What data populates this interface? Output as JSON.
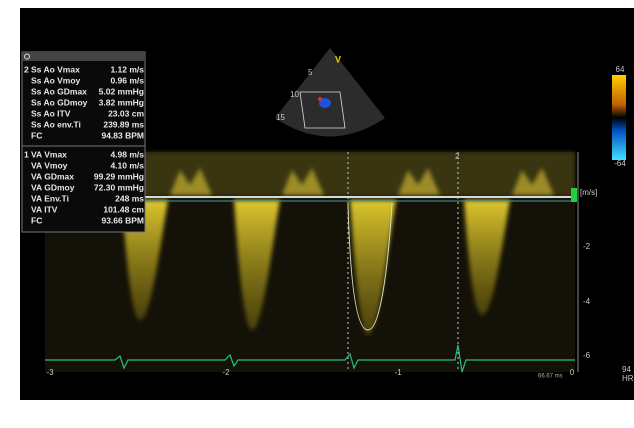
{
  "panel_top": {
    "index": "2",
    "rows": [
      [
        "Ss Ao Vmax",
        "1.12 m/s"
      ],
      [
        "Ss Ao Vmoy",
        "0.96 m/s"
      ],
      [
        "Ss Ao GDmax",
        "5.02 mmHg"
      ],
      [
        "Ss Ao GDmoy",
        "3.82 mmHg"
      ],
      [
        "Ss Ao ITV",
        "23.03 cm"
      ],
      [
        "Ss Ao env.Ti",
        "239.89 ms"
      ],
      [
        "FC",
        "94.83 BPM"
      ]
    ]
  },
  "panel_bottom": {
    "index": "1",
    "rows": [
      [
        "VA Vmax",
        "4.98 m/s"
      ],
      [
        "VA Vmoy",
        "4.10 m/s"
      ],
      [
        "VA GDmax",
        "99.29 mmHg"
      ],
      [
        "VA  GDmoy",
        "72.30 mmHg"
      ],
      [
        "VA Env.Ti",
        "248 ms"
      ],
      [
        "VA ITV",
        "101.48 cm"
      ],
      [
        "FC",
        "93.66 BPM"
      ]
    ]
  },
  "sector": {
    "label": "V",
    "depths": [
      "5",
      "10",
      "15"
    ]
  },
  "color_bar": {
    "top": "64",
    "bottom": "-64"
  },
  "velocity_axis": {
    "unit": "[m/s]",
    "labels": [
      "-2",
      "-4",
      "-6"
    ]
  },
  "time_axis": {
    "labels": [
      "-3",
      "-2",
      "-1",
      "0"
    ]
  },
  "marker": "2",
  "sweep": "66.67 ms",
  "heart_rate": {
    "value": "94",
    "unit": "HR"
  }
}
